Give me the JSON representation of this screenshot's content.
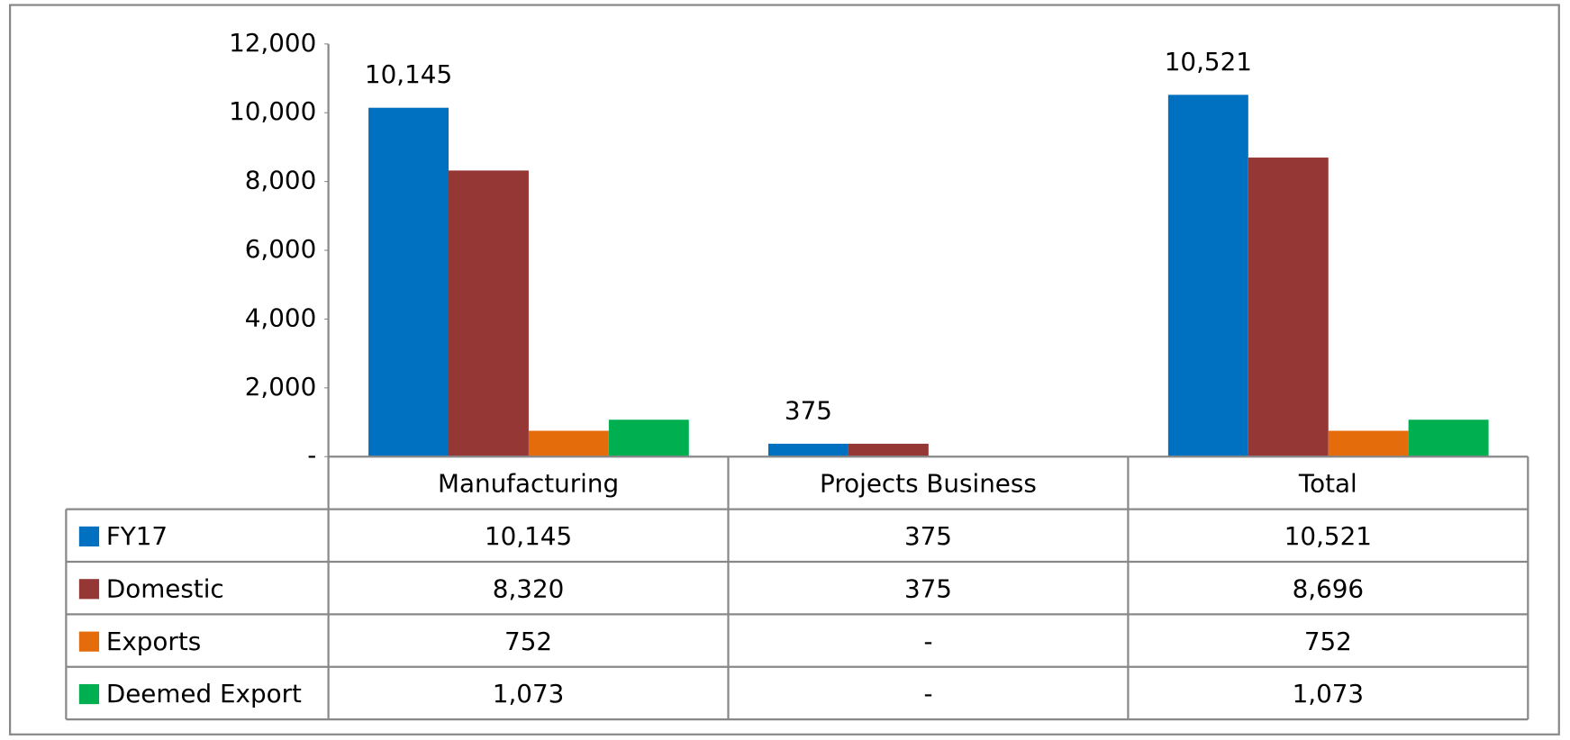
{
  "chart_data": {
    "type": "bar",
    "categories": [
      "Manufacturing",
      "Projects Business",
      "Total"
    ],
    "series": [
      {
        "name": "FY17",
        "color": "#0070c0",
        "values": [
          10145,
          375,
          10521
        ],
        "value_labels": [
          "10,145",
          "375",
          "10,521"
        ]
      },
      {
        "name": "Domestic",
        "color": "#953735",
        "values": [
          8320,
          375,
          8696
        ],
        "value_labels": [
          "8,320",
          "375",
          "8,696"
        ]
      },
      {
        "name": "Exports",
        "color": "#e46c0a",
        "values": [
          752,
          0,
          752
        ],
        "value_labels": [
          "752",
          "-",
          "752"
        ]
      },
      {
        "name": "Deemed Export",
        "color": "#00b050",
        "values": [
          1073,
          0,
          1073
        ],
        "value_labels": [
          "1,073",
          "-",
          "1,073"
        ]
      }
    ],
    "ylim": [
      0,
      12000
    ],
    "yticks": [
      {
        "value": 0,
        "label": "-"
      },
      {
        "value": 2000,
        "label": "2,000"
      },
      {
        "value": 4000,
        "label": "4,000"
      },
      {
        "value": 6000,
        "label": "6,000"
      },
      {
        "value": 8000,
        "label": "8,000"
      },
      {
        "value": 10000,
        "label": "10,000"
      },
      {
        "value": 12000,
        "label": "12,000"
      }
    ],
    "data_labels_series": 0,
    "data_table": true
  }
}
